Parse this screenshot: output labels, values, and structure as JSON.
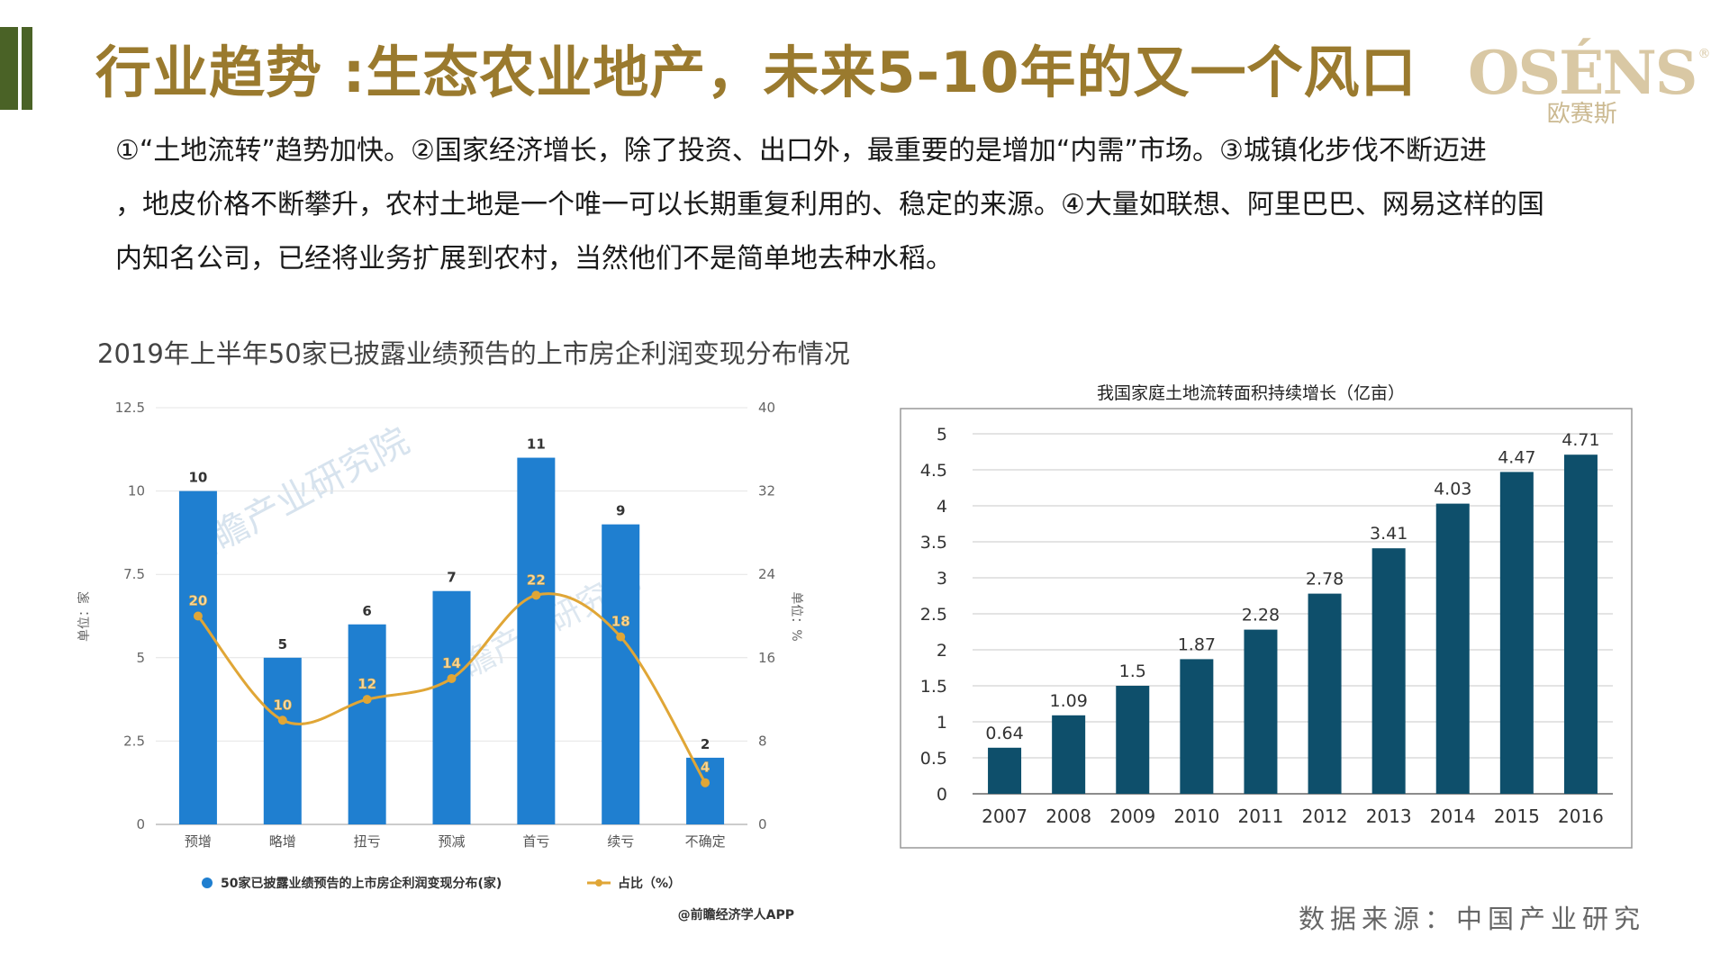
{
  "header": {
    "title": "行业趋势 :生态农业地产，未来5-10年的又一个风口",
    "logo_en": "OSÉNS",
    "logo_cn": "欧赛斯",
    "logo_mark": "®"
  },
  "paragraph": {
    "line1": "①“土地流转”趋势加快。②国家经济增长，除了投资、出口外，最重要的是增加“内需”市场。③城镇化步伐不断迈进",
    "line2": "，地皮价格不断攀升，农村土地是一个唯一可以长期重复利用的、稳定的来源。④大量如联想、阿里巴巴、网易这样的国",
    "line3": "内知名公司，已经将业务扩展到农村，当然他们不是简单地去种水稻。"
  },
  "source_note": "数据来源：中国产业研究",
  "colors": {
    "title": "#9a7a2e",
    "accent_green": "#4a6226",
    "left_bar": "#1f7fd0",
    "left_line": "#e0a636",
    "right_bar": "#0e4f6b"
  },
  "chart_data": [
    {
      "type": "bar",
      "title": "2019年上半年50家已披露业绩预告的上市房企利润变现分布情况",
      "categories": [
        "预增",
        "略增",
        "扭亏",
        "预减",
        "首亏",
        "续亏",
        "不确定"
      ],
      "series": [
        {
          "name": "50家已披露业绩预告的上市房企利润变现分布(家)",
          "type": "bar",
          "axis": "left",
          "values": [
            10,
            5,
            6,
            7,
            11,
            9,
            2
          ]
        },
        {
          "name": "占比（%）",
          "type": "line",
          "axis": "right",
          "values": [
            20,
            10,
            12,
            14,
            22,
            18,
            4
          ]
        }
      ],
      "ylabel": "单位：家",
      "y2label": "单位：%",
      "ylim": [
        0,
        12.5
      ],
      "y2lim": [
        0,
        40
      ],
      "yticks": [
        "0",
        "2.5",
        "5",
        "7.5",
        "10",
        "12.5"
      ],
      "y2ticks": [
        "0",
        "8",
        "16",
        "24",
        "32",
        "40"
      ],
      "grid": true,
      "legend_position": "bottom",
      "credit": "@前瞻经济学人APP",
      "watermark": "前瞻产业研究院"
    },
    {
      "type": "bar",
      "title": "我国家庭土地流转面积持续增长（亿亩）",
      "categories": [
        "2007",
        "2008",
        "2009",
        "2010",
        "2011",
        "2012",
        "2013",
        "2014",
        "2015",
        "2016"
      ],
      "values": [
        0.64,
        1.09,
        1.5,
        1.87,
        2.28,
        2.78,
        3.41,
        4.03,
        4.47,
        4.71
      ],
      "value_labels": [
        "0.64",
        "1.09",
        "1.5",
        "1.87",
        "2.28",
        "2.78",
        "3.41",
        "4.03",
        "4.47",
        "4.71"
      ],
      "ylim": [
        0,
        5
      ],
      "yticks": [
        "0",
        "0.5",
        "1",
        "1.5",
        "2",
        "2.5",
        "3",
        "3.5",
        "4",
        "4.5",
        "5"
      ],
      "grid": true
    }
  ]
}
